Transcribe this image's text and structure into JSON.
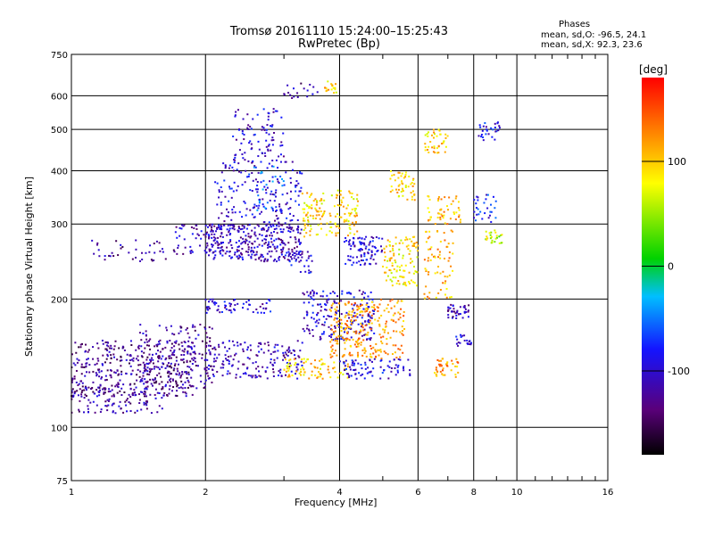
{
  "chart_data": {
    "type": "scatter",
    "title": "Tromsø 20161110 15:24:00–15:25:43",
    "subtitle": "RwPretec (Bp)",
    "legend_box": {
      "title": "Phases",
      "line_o": "mean, sd,O: -96.5, 24.1",
      "line_x": "mean, sd,X:  92.3, 23.6"
    },
    "xlabel": "Frequency [MHz]",
    "ylabel": "Stationary phase Virtual Height [km]",
    "xscale": "log",
    "yscale": "log",
    "xlim": [
      1,
      16
    ],
    "ylim": [
      75,
      750
    ],
    "xticks": [
      1,
      2,
      4,
      6,
      8,
      10,
      16
    ],
    "yticks": [
      75,
      100,
      200,
      300,
      400,
      500,
      600,
      750
    ],
    "grid": true,
    "colorbar": {
      "label": "[deg]",
      "range": [
        -180,
        180
      ],
      "ticks": [
        100,
        0,
        -100
      ]
    },
    "clusters": [
      {
        "x": [
          1.0,
          1.9
        ],
        "y": [
          118,
          160
        ],
        "phase": -125,
        "n": 380
      },
      {
        "x": [
          1.0,
          1.6
        ],
        "y": [
          108,
          125
        ],
        "phase": -120,
        "n": 120
      },
      {
        "x": [
          1.4,
          2.1
        ],
        "y": [
          123,
          175
        ],
        "phase": -120,
        "n": 160
      },
      {
        "x": [
          1.1,
          1.7
        ],
        "y": [
          245,
          275
        ],
        "phase": -120,
        "n": 40
      },
      {
        "x": [
          1.7,
          2.2
        ],
        "y": [
          255,
          300
        ],
        "phase": -110,
        "n": 60
      },
      {
        "x": [
          2.0,
          3.3
        ],
        "y": [
          245,
          300
        ],
        "phase": -110,
        "n": 320
      },
      {
        "x": [
          2.1,
          3.3
        ],
        "y": [
          300,
          420
        ],
        "phase": -100,
        "n": 160
      },
      {
        "x": [
          2.3,
          3.0
        ],
        "y": [
          420,
          560
        ],
        "phase": -100,
        "n": 90
      },
      {
        "x": [
          2.5,
          3.0
        ],
        "y": [
          320,
          430
        ],
        "phase": -65,
        "n": 40
      },
      {
        "x": [
          2.0,
          3.3
        ],
        "y": [
          130,
          160
        ],
        "phase": -110,
        "n": 180
      },
      {
        "x": [
          2.0,
          2.8
        ],
        "y": [
          185,
          200
        ],
        "phase": -100,
        "n": 60
      },
      {
        "x": [
          3.0,
          3.5
        ],
        "y": [
          230,
          260
        ],
        "phase": -100,
        "n": 30
      },
      {
        "x": [
          3.0,
          3.6
        ],
        "y": [
          590,
          650
        ],
        "phase": -120,
        "n": 18
      },
      {
        "x": [
          3.7,
          4.0
        ],
        "y": [
          600,
          650
        ],
        "phase": 95,
        "n": 18
      },
      {
        "x": [
          3.3,
          4.4
        ],
        "y": [
          280,
          360
        ],
        "phase": 95,
        "n": 150
      },
      {
        "x": [
          3.0,
          4.2
        ],
        "y": [
          130,
          145
        ],
        "phase": 100,
        "n": 80
      },
      {
        "x": [
          3.3,
          4.8
        ],
        "y": [
          160,
          210
        ],
        "phase": -100,
        "n": 200
      },
      {
        "x": [
          3.8,
          5.6
        ],
        "y": [
          145,
          200
        ],
        "phase": 120,
        "n": 260
      },
      {
        "x": [
          4.0,
          5.8
        ],
        "y": [
          130,
          145
        ],
        "phase": -95,
        "n": 80
      },
      {
        "x": [
          4.1,
          5.0
        ],
        "y": [
          240,
          280
        ],
        "phase": -100,
        "n": 90
      },
      {
        "x": [
          5.0,
          6.0
        ],
        "y": [
          215,
          280
        ],
        "phase": 90,
        "n": 110
      },
      {
        "x": [
          5.2,
          5.9
        ],
        "y": [
          340,
          400
        ],
        "phase": 95,
        "n": 50
      },
      {
        "x": [
          6.2,
          7.2
        ],
        "y": [
          200,
          290
        ],
        "phase": 110,
        "n": 70
      },
      {
        "x": [
          6.3,
          7.5
        ],
        "y": [
          300,
          350
        ],
        "phase": 110,
        "n": 50
      },
      {
        "x": [
          6.2,
          7.0
        ],
        "y": [
          440,
          500
        ],
        "phase": 100,
        "n": 40
      },
      {
        "x": [
          6.5,
          7.4
        ],
        "y": [
          130,
          145
        ],
        "phase": 120,
        "n": 40
      },
      {
        "x": [
          7.0,
          7.8
        ],
        "y": [
          180,
          195
        ],
        "phase": -115,
        "n": 40
      },
      {
        "x": [
          7.3,
          7.9
        ],
        "y": [
          155,
          165
        ],
        "phase": -100,
        "n": 20
      },
      {
        "x": [
          8.2,
          9.3
        ],
        "y": [
          470,
          520
        ],
        "phase": -90,
        "n": 30
      },
      {
        "x": [
          8.5,
          9.3
        ],
        "y": [
          270,
          290
        ],
        "phase": 60,
        "n": 25
      },
      {
        "x": [
          8.0,
          9.0
        ],
        "y": [
          300,
          360
        ],
        "phase": -80,
        "n": 30
      }
    ]
  }
}
